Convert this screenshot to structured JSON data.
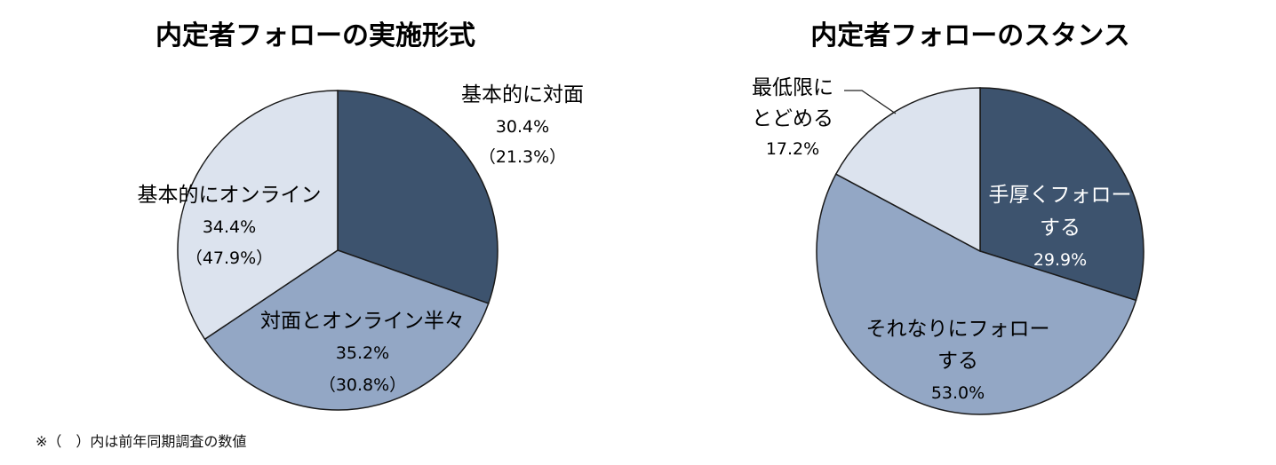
{
  "chart_data": [
    {
      "type": "pie",
      "title": "内定者フォローの実施形式",
      "slices": [
        {
          "label": "基本的に対面",
          "value": 30.4,
          "value_text": "30.4%",
          "prev_text": "（21.3%）",
          "color": "#3d536e"
        },
        {
          "label": "対面とオンライン半々",
          "value": 35.2,
          "value_text": "35.2%",
          "prev_text": "（30.8%）",
          "color": "#93a7c5"
        },
        {
          "label": "基本的にオンライン",
          "value": 34.4,
          "value_text": "34.4%",
          "prev_text": "（47.9%）",
          "color": "#dce3ee"
        }
      ]
    },
    {
      "type": "pie",
      "title": "内定者フォローのスタンス",
      "slices": [
        {
          "label": "手厚くフォロー",
          "label2": "する",
          "value": 29.9,
          "value_text": "29.9%",
          "color": "#3d536e"
        },
        {
          "label": "それなりにフォロー",
          "label2": "する",
          "value": 53.0,
          "value_text": "53.0%",
          "color": "#93a7c5"
        },
        {
          "label": "最低限に",
          "label2": "とどめる",
          "value": 17.2,
          "value_text": "17.2%",
          "color": "#dce3ee"
        }
      ]
    }
  ],
  "footnote": "※（　）内は前年同期調査の数値"
}
